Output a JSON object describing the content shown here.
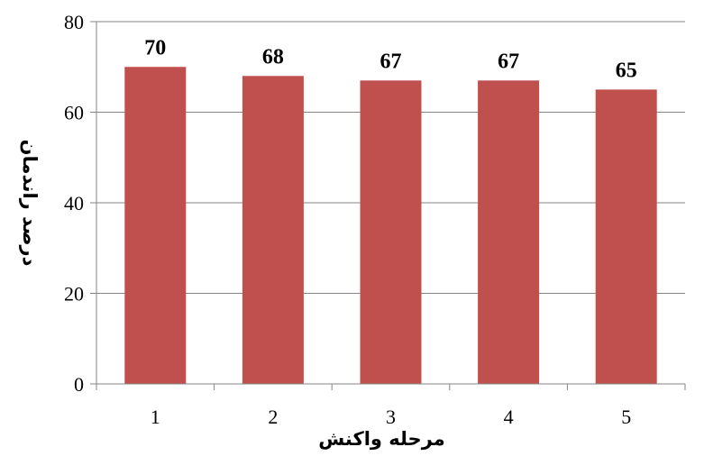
{
  "chart_data": {
    "type": "bar",
    "categories": [
      "1",
      "2",
      "3",
      "4",
      "5"
    ],
    "values": [
      70,
      68,
      67,
      67,
      65
    ],
    "data_labels": [
      "70",
      "68",
      "67",
      "67",
      "65"
    ],
    "title": "",
    "xlabel": "مرحله واکنش",
    "ylabel": "درصد راندمان",
    "ylim": [
      0,
      80
    ],
    "yticks": [
      0,
      20,
      40,
      60,
      80
    ],
    "ytick_labels": [
      "0",
      "20",
      "40",
      "60",
      "80"
    ],
    "grid": true,
    "legend": "none",
    "bar_color": "#C0504D",
    "grid_color": "#868686",
    "axis_color": "#868686"
  }
}
